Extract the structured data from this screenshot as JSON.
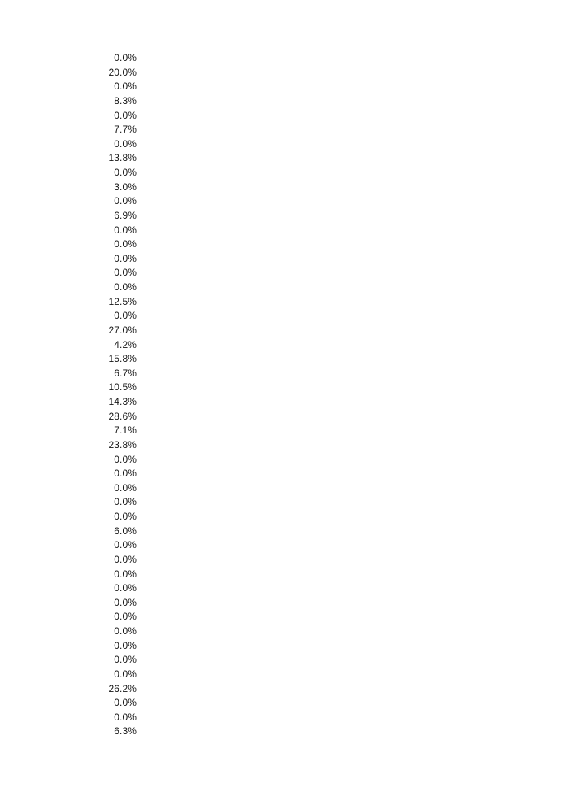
{
  "page": {
    "background_color": "#ffffff",
    "text_color": "#141414"
  },
  "values_column": {
    "description": "single right-aligned column of percentage values",
    "values": [
      "0.0%",
      "20.0%",
      "0.0%",
      "8.3%",
      "0.0%",
      "7.7%",
      "0.0%",
      "13.8%",
      "0.0%",
      "3.0%",
      "0.0%",
      "6.9%",
      "0.0%",
      "0.0%",
      "0.0%",
      "0.0%",
      "0.0%",
      "12.5%",
      "0.0%",
      "27.0%",
      "4.2%",
      "15.8%",
      "6.7%",
      "10.5%",
      "14.3%",
      "28.6%",
      "7.1%",
      "23.8%",
      "0.0%",
      "0.0%",
      "0.0%",
      "0.0%",
      "0.0%",
      "6.0%",
      "0.0%",
      "0.0%",
      "0.0%",
      "0.0%",
      "0.0%",
      "0.0%",
      "0.0%",
      "0.0%",
      "0.0%",
      "0.0%",
      "26.2%",
      "0.0%",
      "0.0%",
      "6.3%"
    ]
  }
}
